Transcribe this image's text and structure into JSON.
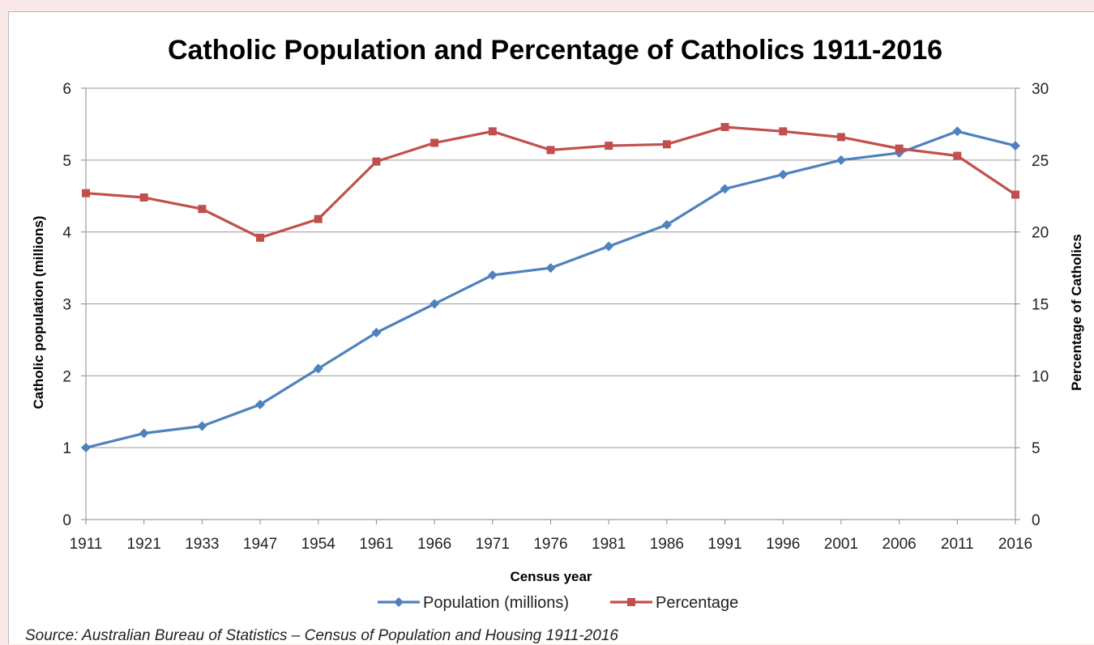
{
  "chart_data": {
    "type": "line",
    "title": "Catholic Population and Percentage of Catholics 1911-2016",
    "xlabel": "Census year",
    "ylabel": "Catholic population (millions)",
    "y2label": "Percentage of Catholics",
    "categories": [
      "1911",
      "1921",
      "1933",
      "1947",
      "1954",
      "1961",
      "1966",
      "1971",
      "1976",
      "1981",
      "1986",
      "1991",
      "1996",
      "2001",
      "2006",
      "2011",
      "2016"
    ],
    "ylim": [
      0,
      6
    ],
    "y2lim": [
      0,
      30
    ],
    "yticks": [
      "0",
      "1",
      "2",
      "3",
      "4",
      "5",
      "6"
    ],
    "y2ticks": [
      "0",
      "5",
      "10",
      "15",
      "20",
      "25",
      "30"
    ],
    "grid": true,
    "legend_position": "bottom",
    "series": [
      {
        "name": "Population (millions)",
        "axis": "left",
        "color": "#4f81bd",
        "marker": "diamond",
        "values": [
          1.0,
          1.2,
          1.3,
          1.6,
          2.1,
          2.6,
          3.0,
          3.4,
          3.5,
          3.8,
          4.1,
          4.6,
          4.8,
          5.0,
          5.1,
          5.4,
          5.2
        ]
      },
      {
        "name": "Percentage",
        "axis": "right",
        "color": "#c0504d",
        "marker": "square",
        "values": [
          22.7,
          22.4,
          21.6,
          19.6,
          20.9,
          24.9,
          26.2,
          27.0,
          25.7,
          26.0,
          26.1,
          27.3,
          27.0,
          26.6,
          25.8,
          25.3,
          22.6
        ]
      }
    ]
  },
  "source_note": "Source: Australian Bureau of Statistics – Census of Population and Housing 1911-2016"
}
